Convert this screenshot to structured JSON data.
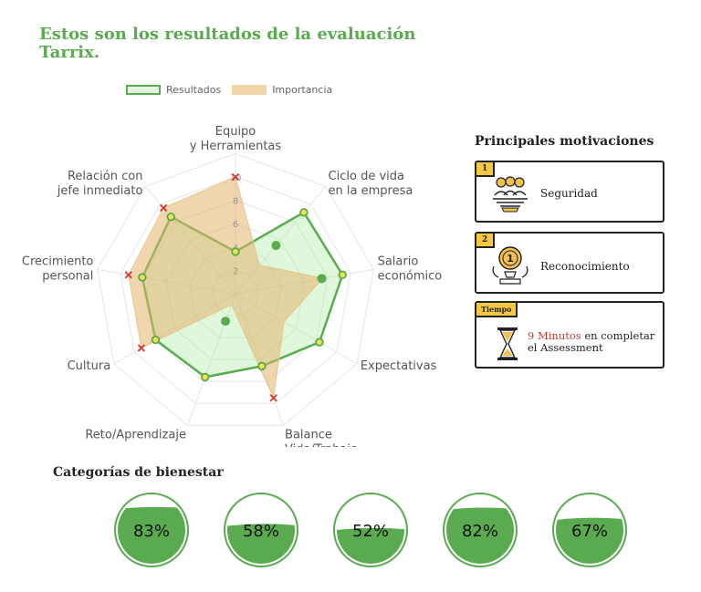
{
  "header": {
    "title": "Estos son los resultados de la evaluación Tarrix."
  },
  "legend": {
    "results_label": "Resultados",
    "importance_label": "Importancia"
  },
  "chart_data": {
    "type": "radar",
    "axes": [
      [
        "Equipo",
        "y Herramientas"
      ],
      [
        "Ciclo de vida",
        "en la empresa"
      ],
      [
        "Salario",
        "económico"
      ],
      [
        "Expectativas"
      ],
      [
        "Balance",
        "Vida/Trabajo"
      ],
      [
        "Reto/Aprendizaje"
      ],
      [
        "Cultura"
      ],
      [
        "Crecimiento",
        "personal"
      ],
      [
        "Relación con",
        "jefe inmediato"
      ]
    ],
    "rlim": [
      0,
      10
    ],
    "ticks": [
      "2",
      "4",
      "6",
      "8",
      "10"
    ],
    "series": [
      {
        "name": "Resultados",
        "values": [
          3.6,
          9.1,
          9.3,
          8.3,
          6.6,
          7.6,
          7.9,
          8.1,
          8.6
        ],
        "color": "#5aaa50",
        "fill": "rgba(170,235,160,0.38)"
      },
      {
        "name": "Importancia",
        "values": [
          10,
          3.2,
          7.6,
          4.8,
          9.5,
          1.0,
          9.3,
          9.3,
          9.6
        ],
        "color": "#e8c690",
        "fill": "rgba(225,180,110,0.55)"
      }
    ],
    "importance_outliers": [
      0,
      4,
      6,
      7,
      8
    ],
    "green_dots": [
      {
        "axis": 1,
        "value": 5.4
      },
      {
        "axis": 2,
        "value": 7.5
      },
      {
        "axis": 5,
        "value": 2.5
      }
    ]
  },
  "motivations": {
    "title": "Principales motivaciones",
    "items": [
      {
        "rank": "1",
        "label": "Seguridad",
        "icon": "team-icon"
      },
      {
        "rank": "2",
        "label": "Reconocimiento",
        "icon": "medal-icon"
      }
    ],
    "time": {
      "badge": "Tiempo",
      "highlight": "9 Minutos",
      "text1": " en completar",
      "text2": "el Assessment",
      "icon": "hourglass-icon"
    }
  },
  "wellbeing": {
    "title": "Categorías de bienestar",
    "gauges": [
      {
        "label": "83%",
        "value": 0.83
      },
      {
        "label": "58%",
        "value": 0.58
      },
      {
        "label": "52%",
        "value": 0.52
      },
      {
        "label": "82%",
        "value": 0.82
      },
      {
        "label": "67%",
        "value": 0.67
      }
    ],
    "color": "#5aaa50"
  }
}
